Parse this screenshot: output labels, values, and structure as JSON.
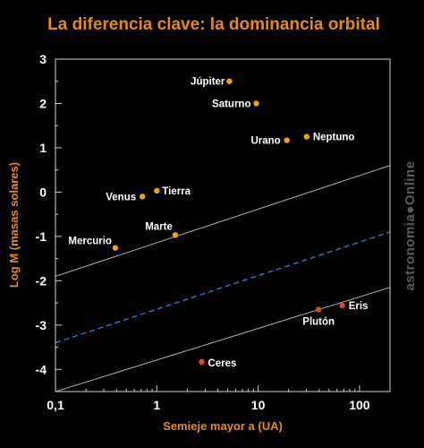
{
  "chart_data": {
    "type": "scatter",
    "title": "La diferencia clave: la dominancia orbital",
    "xlabel": "Semieje mayor a (UA)",
    "ylabel": "Log M (masas solares)",
    "x_scale": "log",
    "xlim": [
      0.1,
      200
    ],
    "ylim": [
      -4.5,
      3
    ],
    "x_ticks": [
      {
        "value": 0.1,
        "label": "0,1"
      },
      {
        "value": 1,
        "label": "1"
      },
      {
        "value": 10,
        "label": "10"
      },
      {
        "value": 100,
        "label": "100"
      }
    ],
    "y_ticks": [
      {
        "value": 3,
        "label": "3"
      },
      {
        "value": 2,
        "label": "2"
      },
      {
        "value": 1,
        "label": "1"
      },
      {
        "value": 0,
        "label": "0"
      },
      {
        "value": -1,
        "label": "-1"
      },
      {
        "value": -2,
        "label": "-2"
      },
      {
        "value": -3,
        "label": "-3"
      },
      {
        "value": -4,
        "label": "-4"
      }
    ],
    "grid": false,
    "series": [
      {
        "color": "#e8a317",
        "points": [
          {
            "label": "Mercurio",
            "x": 0.39,
            "y": -1.26
          },
          {
            "label": "Venus",
            "x": 0.72,
            "y": -0.1
          },
          {
            "label": "Tierra",
            "x": 1.0,
            "y": 0.03
          },
          {
            "label": "Marte",
            "x": 1.52,
            "y": -0.97
          },
          {
            "label": "Júpiter",
            "x": 5.2,
            "y": 2.5
          },
          {
            "label": "Saturno",
            "x": 9.58,
            "y": 2.0
          },
          {
            "label": "Urano",
            "x": 19.2,
            "y": 1.17
          },
          {
            "label": "Neptuno",
            "x": 30.1,
            "y": 1.25
          }
        ]
      },
      {
        "color": "#e0452a",
        "points": [
          {
            "label": "Ceres",
            "x": 2.77,
            "y": -3.83
          },
          {
            "label": "Plutón",
            "x": 39.5,
            "y": -2.65
          },
          {
            "label": "Eris",
            "x": 67.7,
            "y": -2.56
          }
        ]
      }
    ],
    "lines": [
      {
        "style": "solid",
        "color": "#b0b0b0",
        "x": [
          0.1,
          200
        ],
        "y": [
          -1.9,
          0.6
        ]
      },
      {
        "style": "dashed",
        "color": "#2f7fe0",
        "x": [
          0.1,
          200
        ],
        "y": [
          -3.4,
          -0.9
        ]
      },
      {
        "style": "solid",
        "color": "#b0b0b0",
        "x": [
          0.1,
          200
        ],
        "y": [
          -4.5,
          -2.15
        ]
      }
    ]
  },
  "watermark": "astronomia●Online"
}
